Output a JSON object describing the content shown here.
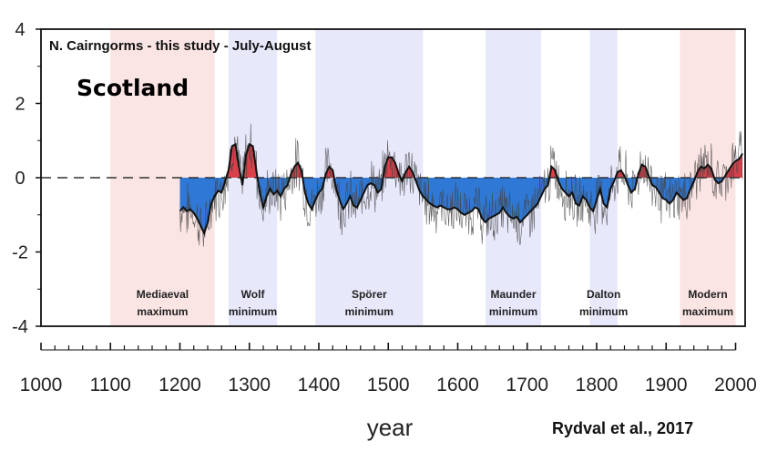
{
  "chart_data": {
    "type": "area",
    "title": "N. Cairngorms - this study - July-August",
    "region_label": "Scotland",
    "credit": "Rydval et al., 2017",
    "xlabel": "year",
    "ylabel": "",
    "xlim": [
      1000,
      2010
    ],
    "ylim": [
      -4,
      4
    ],
    "x_ticks": [
      1000,
      1100,
      1200,
      1300,
      1400,
      1500,
      1600,
      1700,
      1800,
      1900,
      2000
    ],
    "y_ticks": [
      4,
      2,
      0,
      -2,
      -4
    ],
    "baseline": 0,
    "colors": {
      "positive": "#d9404a",
      "negative": "#2f78d6",
      "warm_period": "#fbe4e4",
      "cold_period": "#e7e9fb",
      "line": "#111111"
    },
    "periods": [
      {
        "name": "Mediaeval maximum",
        "lines": [
          "Mediaeval",
          "maximum"
        ],
        "start": 1100,
        "end": 1250,
        "kind": "warm"
      },
      {
        "name": "Wolf minimum",
        "lines": [
          "Wolf",
          "minimum"
        ],
        "start": 1270,
        "end": 1340,
        "kind": "cold"
      },
      {
        "name": "Spörer minimum",
        "lines": [
          "Spörer",
          "minimum"
        ],
        "start": 1395,
        "end": 1550,
        "kind": "cold"
      },
      {
        "name": "Maunder minimum",
        "lines": [
          "Maunder",
          "minimum"
        ],
        "start": 1640,
        "end": 1720,
        "kind": "cold"
      },
      {
        "name": "Dalton minimum",
        "lines": [
          "Dalton",
          "minimum"
        ],
        "start": 1790,
        "end": 1830,
        "kind": "cold"
      },
      {
        "name": "Modern maximum",
        "lines": [
          "Modern",
          "maximum"
        ],
        "start": 1920,
        "end": 2000,
        "kind": "warm"
      }
    ],
    "series": [
      {
        "x": [
          1200,
          1205,
          1210,
          1215,
          1220,
          1225,
          1230,
          1235,
          1240,
          1245,
          1250,
          1255,
          1260,
          1265,
          1270,
          1275,
          1280,
          1285,
          1290,
          1295,
          1300,
          1305,
          1310,
          1315,
          1320,
          1325,
          1330,
          1335,
          1340,
          1345,
          1350,
          1355,
          1360,
          1365,
          1370,
          1375,
          1380,
          1385,
          1390,
          1395,
          1400,
          1405,
          1410,
          1415,
          1420,
          1425,
          1430,
          1435,
          1440,
          1445,
          1450,
          1455,
          1460,
          1465,
          1470,
          1475,
          1480,
          1485,
          1490,
          1495,
          1500,
          1505,
          1510,
          1515,
          1520,
          1525,
          1530,
          1535,
          1540,
          1545,
          1550,
          1555,
          1560,
          1565,
          1570,
          1575,
          1580,
          1585,
          1590,
          1595,
          1600,
          1605,
          1610,
          1615,
          1620,
          1625,
          1630,
          1635,
          1640,
          1645,
          1650,
          1655,
          1660,
          1665,
          1670,
          1675,
          1680,
          1685,
          1690,
          1695,
          1700,
          1705,
          1710,
          1715,
          1720,
          1725,
          1730,
          1735,
          1740,
          1745,
          1750,
          1755,
          1760,
          1765,
          1770,
          1775,
          1780,
          1785,
          1790,
          1795,
          1800,
          1805,
          1810,
          1815,
          1820,
          1825,
          1830,
          1835,
          1840,
          1845,
          1850,
          1855,
          1860,
          1865,
          1870,
          1875,
          1880,
          1885,
          1890,
          1895,
          1900,
          1905,
          1910,
          1915,
          1920,
          1925,
          1930,
          1935,
          1940,
          1945,
          1950,
          1955,
          1960,
          1965,
          1970,
          1975,
          1980,
          1985,
          1990,
          1995,
          2000,
          2005,
          2010
        ],
        "values": [
          -0.9,
          -0.8,
          -0.9,
          -0.85,
          -0.95,
          -1.1,
          -1.3,
          -1.5,
          -1.2,
          -0.7,
          -0.5,
          -0.35,
          -0.4,
          -0.1,
          0.2,
          0.85,
          0.9,
          0.3,
          -0.2,
          0.6,
          0.9,
          0.85,
          0.2,
          -0.4,
          -0.8,
          -0.5,
          -0.3,
          -0.45,
          -0.35,
          -0.5,
          -0.3,
          -0.2,
          0.1,
          0.3,
          0.4,
          0.2,
          -0.4,
          -0.7,
          -0.85,
          -0.6,
          -0.4,
          -0.3,
          0.1,
          0.3,
          0.2,
          -0.3,
          -0.6,
          -0.85,
          -0.7,
          -0.5,
          -0.75,
          -0.8,
          -0.6,
          -0.4,
          -0.2,
          -0.15,
          -0.2,
          -0.4,
          -0.3,
          0.3,
          0.55,
          0.55,
          0.4,
          0.1,
          -0.1,
          0.15,
          0.3,
          0.15,
          -0.1,
          -0.35,
          -0.5,
          -0.6,
          -0.7,
          -0.75,
          -0.8,
          -0.75,
          -0.8,
          -0.85,
          -0.85,
          -0.8,
          -0.85,
          -0.95,
          -1.0,
          -0.95,
          -0.9,
          -0.8,
          -0.85,
          -1.1,
          -1.2,
          -1.1,
          -1.05,
          -1.0,
          -0.95,
          -0.8,
          -0.95,
          -1.05,
          -1.1,
          -1.05,
          -1.2,
          -1.1,
          -1.0,
          -0.9,
          -0.8,
          -0.7,
          -0.5,
          -0.3,
          -0.2,
          0.3,
          0.2,
          -0.1,
          -0.3,
          -0.4,
          -0.5,
          -0.4,
          -0.7,
          -0.75,
          -0.5,
          -0.6,
          -0.8,
          -0.9,
          -0.6,
          -0.3,
          -0.7,
          -0.8,
          -0.3,
          -0.1,
          0.15,
          0.2,
          0.05,
          -0.2,
          -0.4,
          -0.3,
          0.1,
          0.35,
          0.3,
          0.05,
          -0.2,
          -0.25,
          -0.4,
          -0.55,
          -0.6,
          -0.7,
          -0.6,
          -0.4,
          -0.5,
          -0.6,
          -0.55,
          -0.3,
          -0.1,
          0.15,
          0.3,
          0.25,
          0.35,
          0.25,
          -0.05,
          -0.15,
          -0.1,
          0.05,
          0.2,
          0.35,
          0.45,
          0.5,
          0.65
        ]
      }
    ]
  }
}
